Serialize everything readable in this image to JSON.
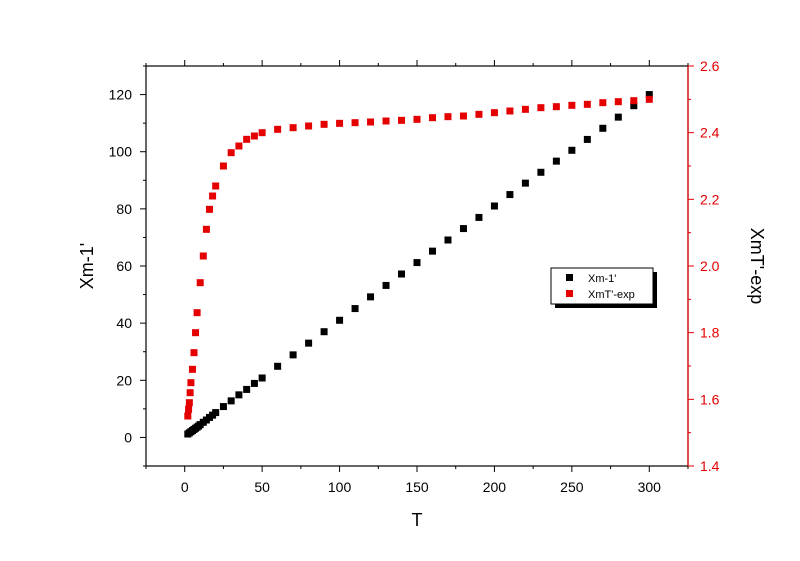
{
  "chart_data": {
    "type": "scatter",
    "xlabel": "T",
    "ylabel": "Xm-1'",
    "y2label": "XmT'-exp",
    "xlim": [
      -25,
      325
    ],
    "ylim": [
      -10,
      130
    ],
    "y2lim": [
      1.4,
      2.6
    ],
    "xticks": [
      0,
      50,
      100,
      150,
      200,
      250,
      300
    ],
    "yticks": [
      0,
      20,
      40,
      60,
      80,
      100,
      120
    ],
    "y2ticks": [
      1.4,
      1.6,
      1.8,
      2.0,
      2.2,
      2.4,
      2.6
    ],
    "xtick_labels": [
      "0",
      "50",
      "100",
      "150",
      "200",
      "250",
      "300"
    ],
    "ytick_labels": [
      "0",
      "20",
      "40",
      "60",
      "80",
      "100",
      "120"
    ],
    "y2tick_labels": [
      "1.4",
      "1.6",
      "1.8",
      "2.0",
      "2.2",
      "2.4",
      "2.6"
    ],
    "grid": false,
    "legend_position": "right",
    "series": [
      {
        "name": "Xm-1'",
        "axis": "left",
        "color": "#000000",
        "x": [
          2,
          3,
          4,
          5,
          6,
          7,
          8,
          9,
          10,
          12,
          14,
          16,
          18,
          20,
          25,
          30,
          35,
          40,
          45,
          50,
          60,
          70,
          80,
          90,
          100,
          110,
          120,
          130,
          140,
          150,
          160,
          170,
          180,
          190,
          200,
          210,
          220,
          230,
          240,
          250,
          260,
          270,
          280,
          290,
          300
        ],
        "y": [
          1.2,
          1.6,
          2.0,
          2.4,
          2.8,
          3.2,
          3.6,
          4.0,
          4.5,
          5.3,
          6.1,
          7.0,
          7.8,
          8.7,
          10.8,
          12.8,
          14.9,
          16.8,
          18.9,
          20.8,
          24.9,
          28.9,
          33.0,
          37.0,
          41.0,
          45.1,
          49.2,
          53.2,
          57.2,
          61.2,
          65.2,
          69.1,
          73.1,
          77.0,
          81.0,
          85.0,
          89.0,
          92.8,
          96.7,
          100.5,
          104.3,
          108.2,
          112.1,
          116.1,
          120.0
        ]
      },
      {
        "name": "XmT'-exp",
        "axis": "right",
        "color": "#e50000",
        "x": [
          2,
          2.5,
          3,
          3.5,
          4,
          5,
          6,
          7,
          8,
          10,
          12,
          14,
          16,
          18,
          20,
          25,
          30,
          35,
          40,
          45,
          50,
          60,
          70,
          80,
          90,
          100,
          110,
          120,
          130,
          140,
          150,
          160,
          170,
          180,
          190,
          200,
          210,
          220,
          230,
          240,
          250,
          260,
          270,
          280,
          290,
          300
        ],
        "y": [
          1.55,
          1.57,
          1.59,
          1.62,
          1.65,
          1.69,
          1.74,
          1.8,
          1.86,
          1.95,
          2.03,
          2.11,
          2.17,
          2.21,
          2.24,
          2.3,
          2.34,
          2.36,
          2.38,
          2.39,
          2.4,
          2.41,
          2.415,
          2.42,
          2.425,
          2.428,
          2.43,
          2.432,
          2.435,
          2.437,
          2.44,
          2.445,
          2.448,
          2.45,
          2.455,
          2.46,
          2.465,
          2.47,
          2.475,
          2.478,
          2.482,
          2.485,
          2.49,
          2.493,
          2.496,
          2.5
        ]
      }
    ]
  }
}
